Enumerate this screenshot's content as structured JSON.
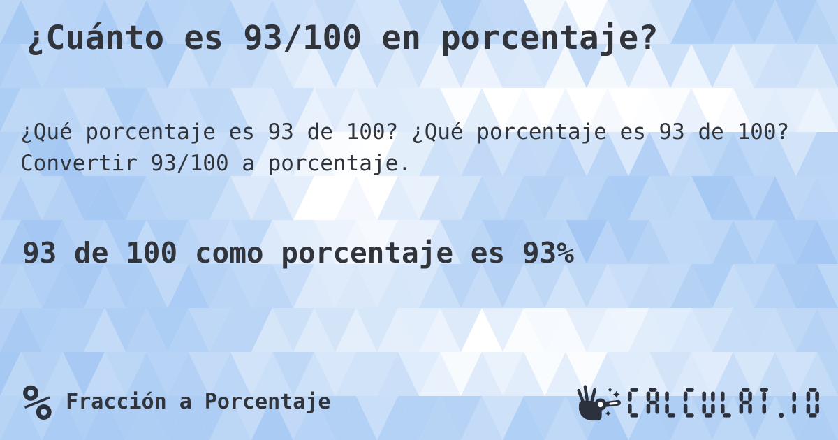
{
  "page": {
    "title": "¿Cuánto es 93/100 en porcentaje?",
    "question": "¿Qué porcentaje es 93 de 100? ¿Qué porcentaje es 93 de 100? Convertir 93/100 a porcentaje.",
    "answer": "93 de 100 como porcentaje es 93%"
  },
  "footer": {
    "percent_glyph": "%",
    "category_label": "Fracción a Porcentaje",
    "logo_text": "CALCULAT.IO",
    "icons": {
      "category": "percent-icon",
      "logo": "magic-wand-hand-icon"
    }
  },
  "theme": {
    "text_color": "#31353b",
    "logo_color": "#2b313d",
    "pattern_blue": "#9ec4f2",
    "pattern_white": "#ffffff"
  }
}
